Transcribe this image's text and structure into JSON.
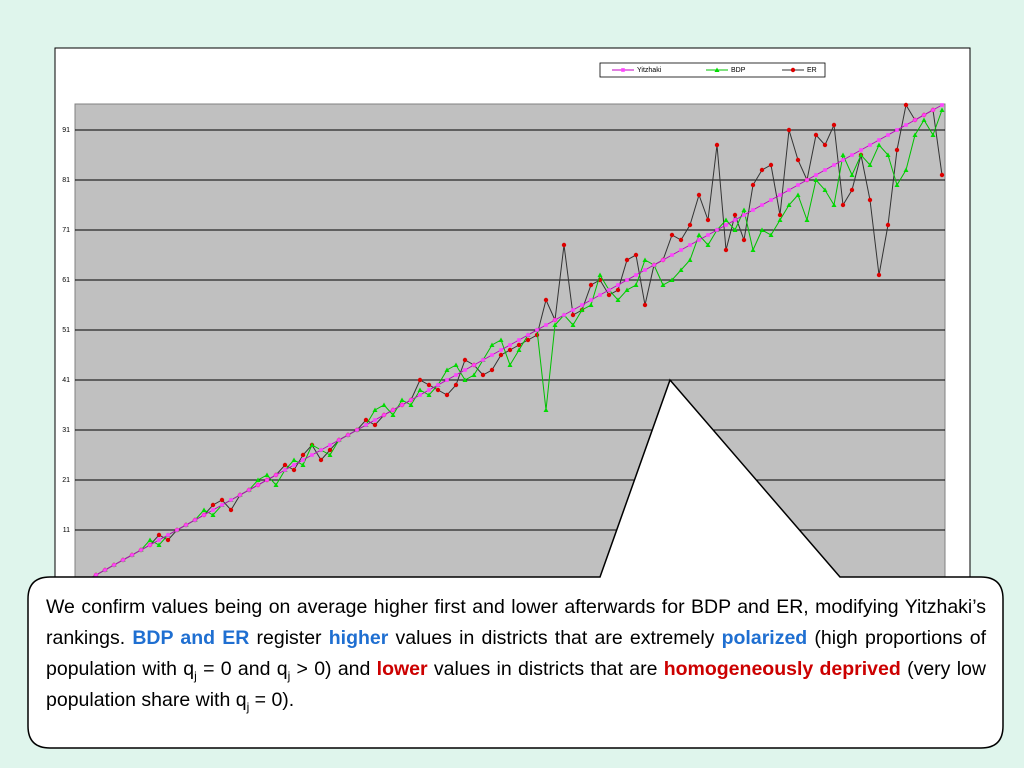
{
  "chart_data": {
    "type": "line",
    "ylim": [
      1,
      96.2
    ],
    "yticks": [
      11,
      21,
      31,
      41,
      51,
      61,
      71,
      81,
      91
    ],
    "grid": true,
    "legend": "top",
    "series": [
      {
        "name": "Yitzhaki",
        "color": "#c000c0",
        "marker_color": "#ff44ff",
        "marker": "square",
        "values": [
          1,
          2,
          3,
          4,
          5,
          6,
          7,
          8,
          9,
          10,
          11,
          12,
          13,
          14,
          15,
          16,
          17,
          18,
          19,
          20,
          21,
          22,
          23,
          24,
          25,
          26,
          27,
          28,
          29,
          30,
          31,
          32,
          33,
          34,
          35,
          36,
          37,
          38,
          39,
          40,
          41,
          42,
          43,
          44,
          45,
          46,
          47,
          48,
          49,
          50,
          51,
          52,
          53,
          54,
          55,
          56,
          57,
          58,
          59,
          60,
          61,
          62,
          63,
          64,
          65,
          66,
          67,
          68,
          69,
          70,
          71,
          72,
          73,
          74,
          75,
          76,
          77,
          78,
          79,
          80,
          81,
          82,
          83,
          84,
          85,
          86,
          87,
          88,
          89,
          90,
          91,
          92,
          93,
          94,
          95,
          96
        ]
      },
      {
        "name": "BDP",
        "color": "#00c000",
        "marker_color": "#00dd00",
        "marker": "triangle",
        "values": [
          1,
          2,
          3,
          4,
          5,
          6,
          7,
          9,
          8,
          10,
          11,
          12,
          13,
          15,
          14,
          16,
          17,
          18,
          19,
          21,
          22,
          20,
          23,
          25,
          24,
          28,
          27,
          26,
          29,
          30,
          31,
          32,
          35,
          36,
          34,
          37,
          36,
          39,
          38,
          40,
          43,
          44,
          41,
          42,
          45,
          48,
          49,
          44,
          47,
          50,
          51,
          35,
          52,
          54,
          52,
          55,
          56,
          62,
          59,
          57,
          59,
          60,
          65,
          64,
          60,
          61,
          63,
          65,
          70,
          68,
          71,
          73,
          71,
          75,
          67,
          71,
          70,
          73,
          76,
          78,
          73,
          81,
          79,
          76,
          86,
          82,
          86,
          84,
          88,
          86,
          80,
          83,
          90,
          93,
          90,
          95
        ]
      },
      {
        "name": "ER",
        "color": "#333333",
        "marker_color": "#dd0000",
        "marker": "circle",
        "values": [
          1,
          2,
          3,
          4,
          5,
          6,
          7,
          8,
          10,
          9,
          11,
          12,
          13,
          14,
          16,
          17,
          15,
          18,
          19,
          20,
          21,
          22,
          24,
          23,
          26,
          28,
          25,
          27,
          29,
          30,
          31,
          33,
          32,
          34,
          35,
          36,
          37,
          41,
          40,
          39,
          38,
          40,
          45,
          44,
          42,
          43,
          46,
          47,
          48,
          49,
          50,
          57,
          53,
          68,
          54,
          55,
          60,
          61,
          58,
          59,
          65,
          66,
          56,
          64,
          65,
          70,
          69,
          72,
          78,
          73,
          88,
          67,
          74,
          69,
          80,
          83,
          84,
          74,
          91,
          85,
          81,
          90,
          88,
          92,
          76,
          79,
          86,
          77,
          62,
          72,
          87,
          96,
          93,
          94,
          95,
          82
        ]
      }
    ]
  },
  "callout": {
    "parts": [
      "We confirm values being on average higher first and lower afterwards for BDP and ER, modifying Yitzhaki’s rankings. ",
      "BDP and ER",
      " register ",
      "higher",
      " values in districts that are extremely ",
      "polarized",
      " (high proportions of population with q",
      "j",
      " = 0 and q",
      "j",
      " > 0) and ",
      "lower",
      " values in districts that are ",
      "homogeneously deprived",
      " (very low population share with q",
      "j",
      " = 0)."
    ]
  }
}
